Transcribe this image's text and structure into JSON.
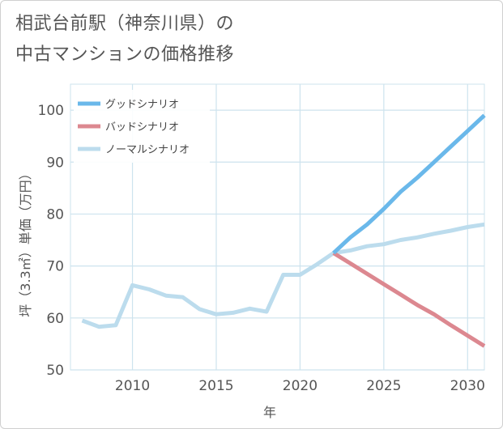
{
  "title": {
    "line1": "相武台前駅（神奈川県）の",
    "line2": "中古マンションの価格推移"
  },
  "colors": {
    "good": "#6ab8ea",
    "bad": "#dc8890",
    "normal": "#bcdced",
    "grid": "#cde3ee",
    "tick_text": "#555555"
  },
  "chart_data": {
    "type": "line",
    "xlabel": "年",
    "ylabel": "坪（3.3㎡）単価（万円）",
    "xlim": [
      2006.3,
      2031
    ],
    "ylim": [
      50,
      105
    ],
    "x_ticks": [
      2010,
      2015,
      2020,
      2025,
      2030
    ],
    "y_ticks": [
      50,
      60,
      70,
      80,
      90,
      100
    ],
    "grid": true,
    "legend_position": "top-left",
    "series": [
      {
        "name": "グッドシナリオ",
        "key": "good",
        "x": [
          2022,
          2023,
          2024,
          2025,
          2026,
          2027,
          2028,
          2029,
          2030,
          2031
        ],
        "values": [
          72.5,
          75.5,
          78,
          81,
          84.3,
          87,
          90,
          93,
          96,
          99
        ]
      },
      {
        "name": "バッドシナリオ",
        "key": "bad",
        "x": [
          2022,
          2023,
          2024,
          2025,
          2026,
          2027,
          2028,
          2029,
          2030,
          2031
        ],
        "values": [
          72.5,
          70.5,
          68.5,
          66.5,
          64.5,
          62.5,
          60.7,
          58.6,
          56.6,
          54.6
        ]
      },
      {
        "name": "ノーマルシナリオ",
        "key": "normal",
        "x": [
          2007,
          2008,
          2009,
          2010,
          2011,
          2012,
          2013,
          2014,
          2015,
          2016,
          2017,
          2018,
          2019,
          2020,
          2021,
          2022,
          2023,
          2024,
          2025,
          2026,
          2027,
          2028,
          2029,
          2030,
          2031
        ],
        "values": [
          59.5,
          58.3,
          58.6,
          66.3,
          65.5,
          64.3,
          64,
          61.7,
          60.7,
          61,
          61.8,
          61.2,
          68.3,
          68.3,
          70.3,
          72.5,
          73,
          73.8,
          74.2,
          75,
          75.5,
          76.2,
          76.8,
          77.5,
          78
        ]
      }
    ]
  }
}
